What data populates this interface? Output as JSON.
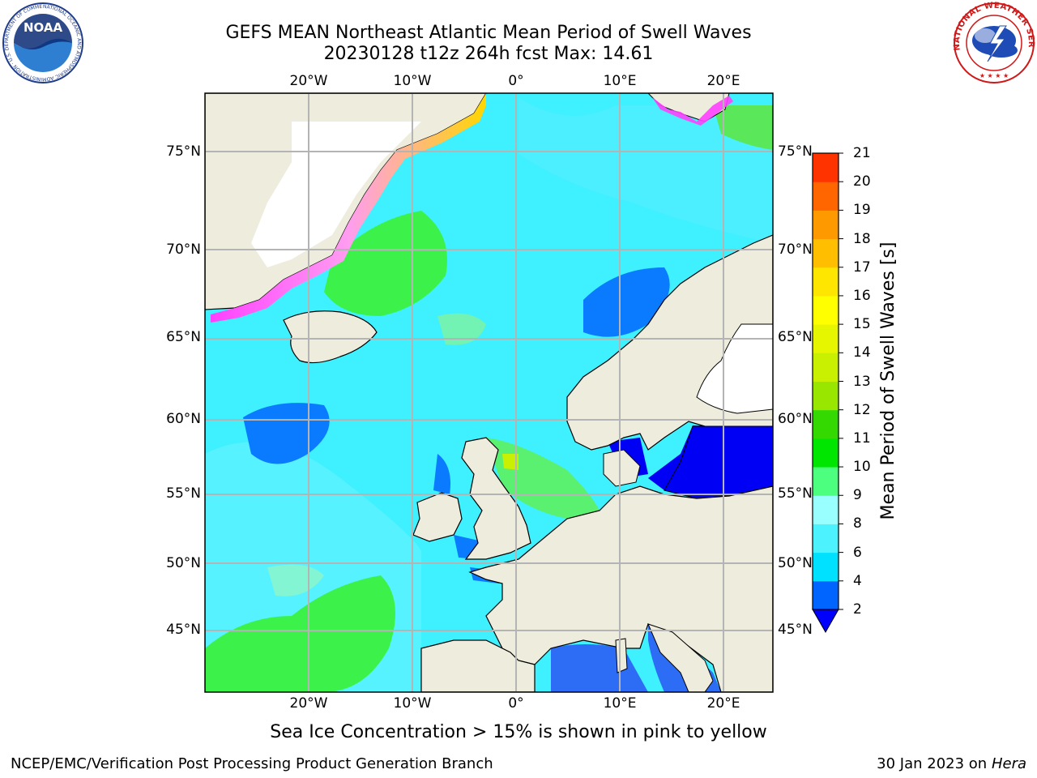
{
  "title": {
    "line1": "GEFS MEAN Northeast Atlantic Mean Period of Swell Waves",
    "line2": "20230128 t12z 264h fcst   Max: 14.61"
  },
  "logos": {
    "left": {
      "name": "noaa-logo",
      "text": "NOAA",
      "ring_text": "NATIONAL OCEANIC AND ATMOSPHERIC ADMINISTRATION · U.S. DEPARTMENT OF COMMERCE"
    },
    "right": {
      "name": "nws-logo",
      "ring_text": "NATIONAL WEATHER SERVICE"
    }
  },
  "map": {
    "longitude_labels": [
      "20°W",
      "10°W",
      "0°",
      "10°E",
      "20°E"
    ],
    "latitude_labels": [
      "75°N",
      "70°N",
      "65°N",
      "60°N",
      "55°N",
      "50°N",
      "45°N"
    ],
    "colors": {
      "land": "#eeecdd",
      "grid": "#b4b4b4",
      "coast": "#000000",
      "ice_pink": "#ff40ff",
      "ice_yellow": "#ffd700"
    }
  },
  "colorbar": {
    "label": "Mean Period of Swell Waves [s]",
    "ticks": [
      "2",
      "4",
      "6",
      "8",
      "9",
      "10",
      "11",
      "12",
      "13",
      "14",
      "15",
      "16",
      "17",
      "18",
      "19",
      "20",
      "21"
    ],
    "colors": [
      "#0064ff",
      "#00e1ff",
      "#4df2ff",
      "#99ffff",
      "#4dff7f",
      "#00e600",
      "#33d900",
      "#99e600",
      "#c8f000",
      "#e6f500",
      "#ffff00",
      "#ffe600",
      "#ffbf00",
      "#ff9900",
      "#ff6600",
      "#ff3300",
      "#ff0000"
    ],
    "extend_min_color": "#0000ff"
  },
  "caption": "Sea Ice Concentration > 15% is shown in pink to yellow",
  "footer": {
    "left": "NCEP/EMC/Verification Post Processing Product Generation Branch",
    "right_date": "30 Jan 2023 on ",
    "right_host": "Hera"
  }
}
